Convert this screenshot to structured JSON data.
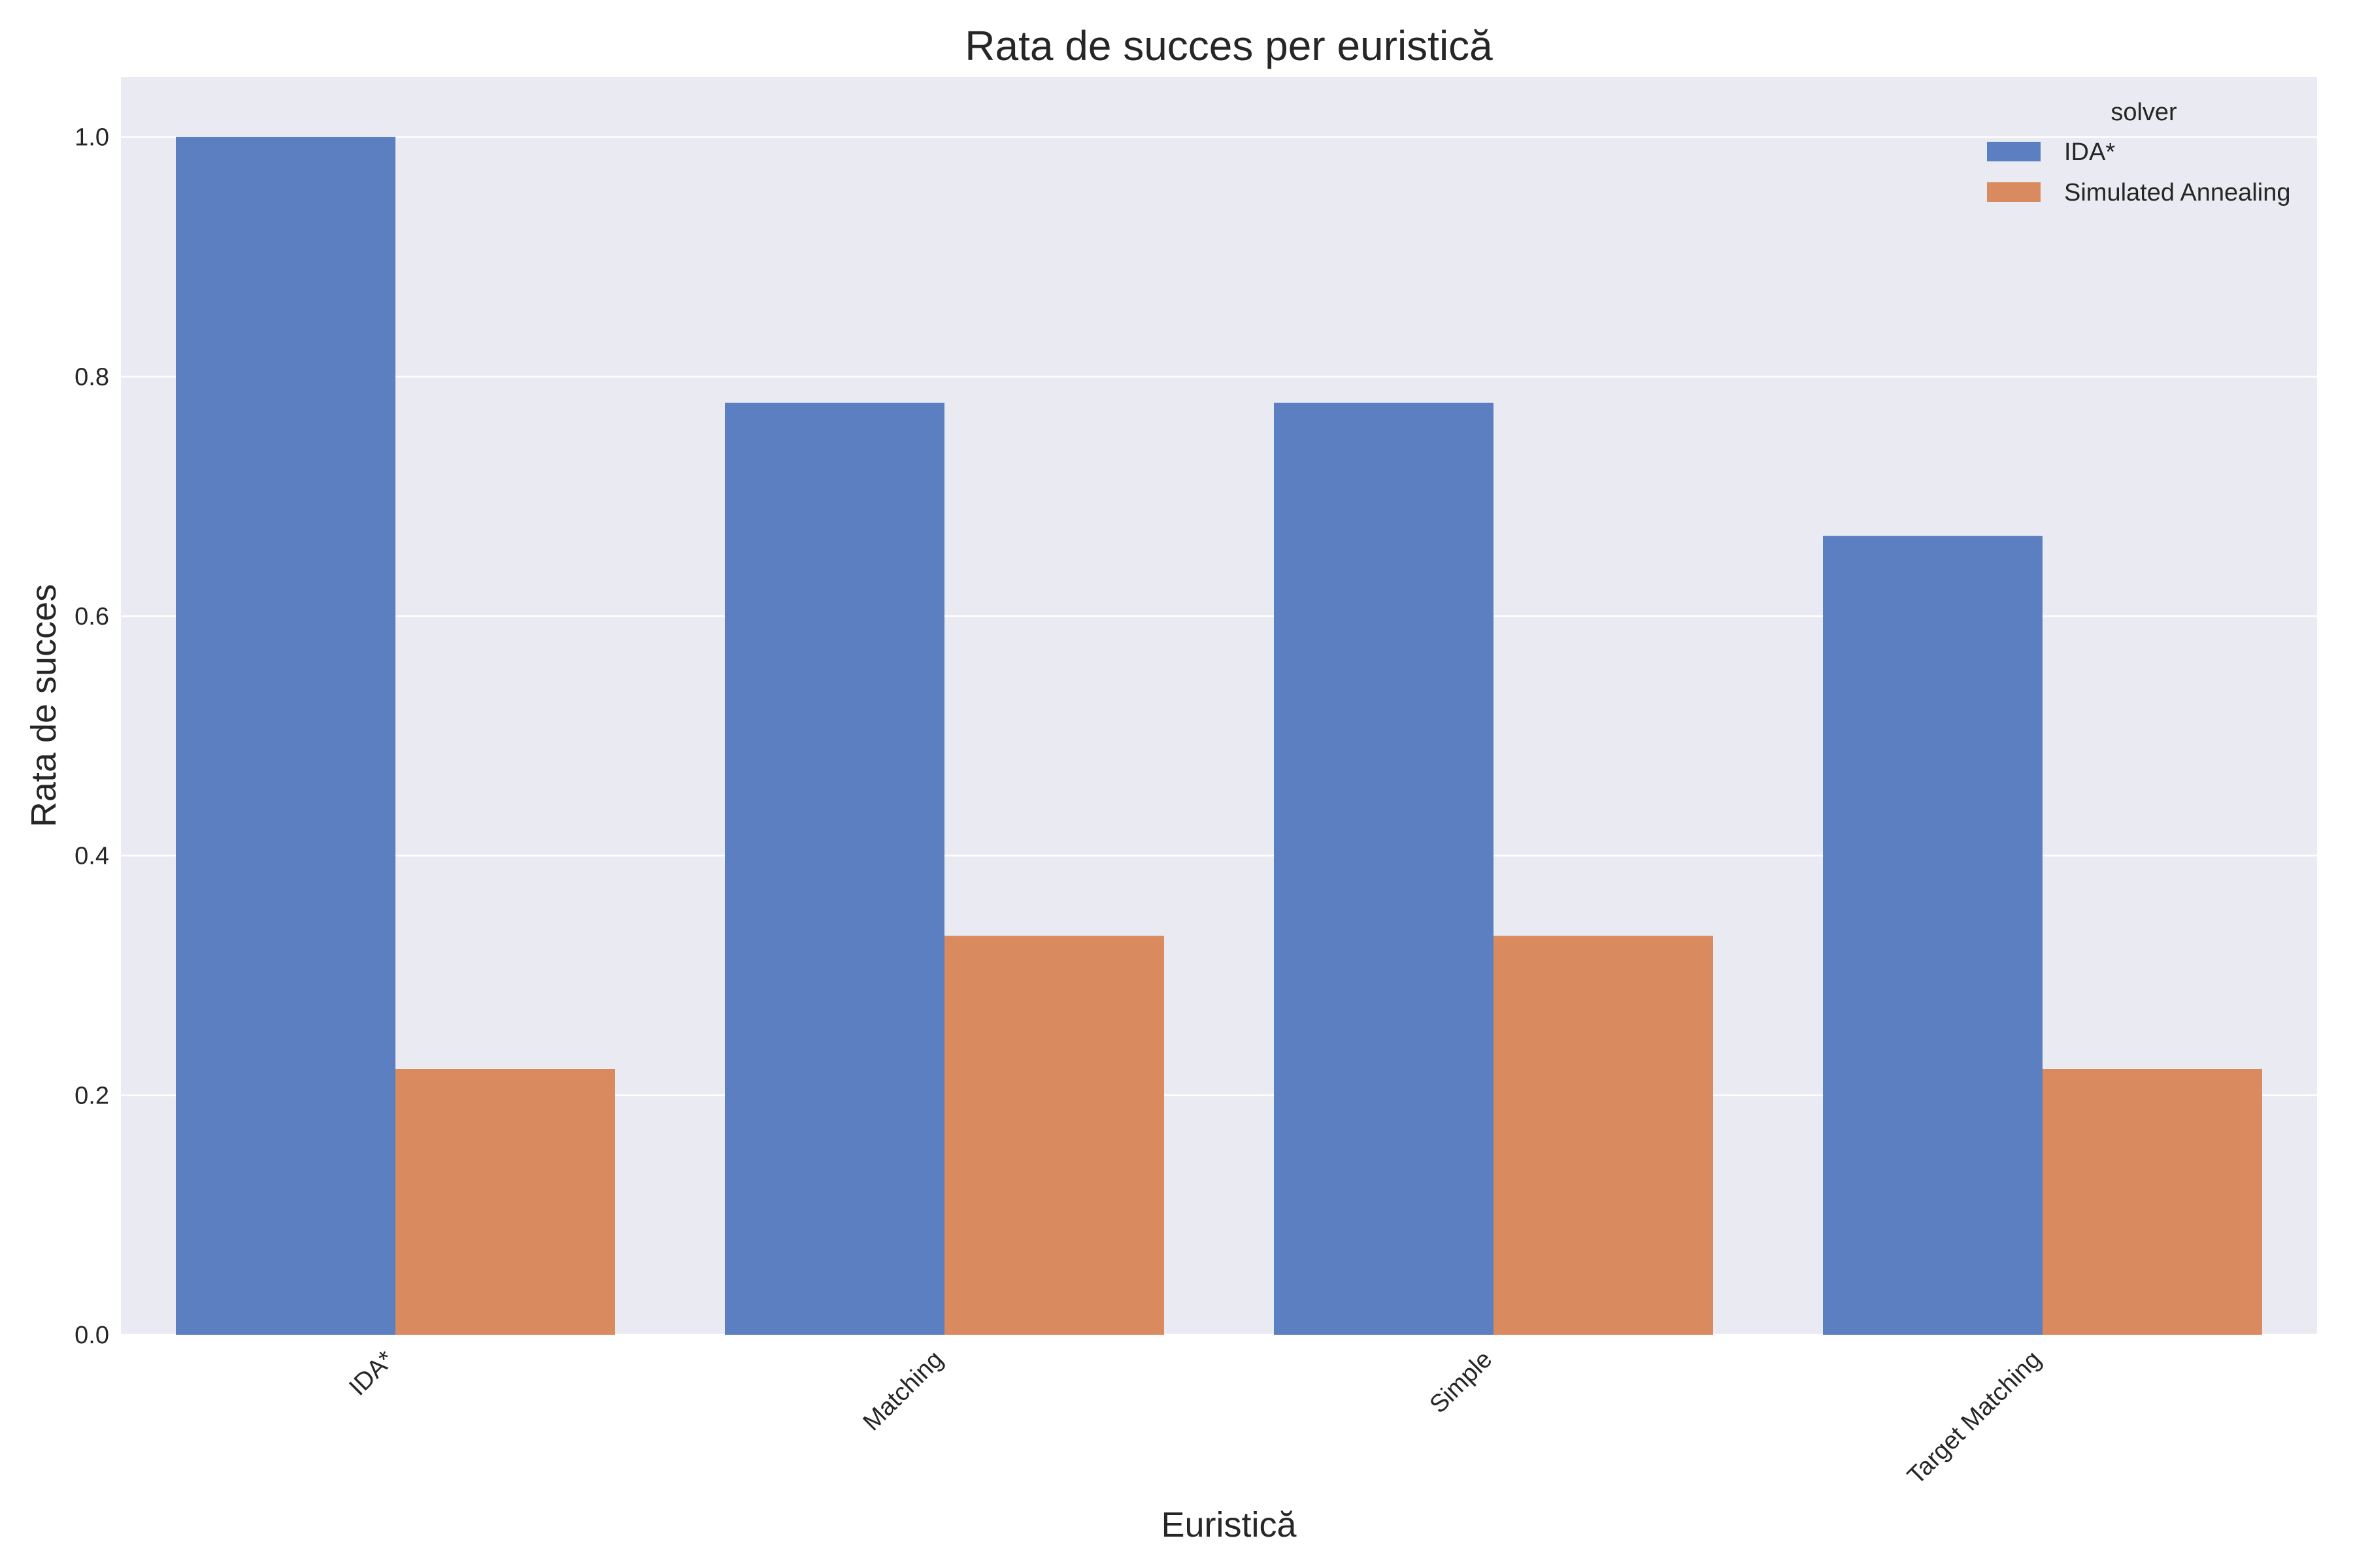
{
  "chart_data": {
    "type": "bar",
    "title": "Rata de succes per euristică",
    "xlabel": "Euristică",
    "ylabel": "Rata de succes",
    "categories": [
      "IDA*",
      "Matching",
      "Simple",
      "Target Matching"
    ],
    "series": [
      {
        "name": "IDA*",
        "color": "#5b7fc0",
        "values": [
          1.0,
          0.778,
          0.778,
          0.667
        ]
      },
      {
        "name": "Simulated Annealing",
        "color": "#d98a5e",
        "values": [
          0.222,
          0.333,
          0.333,
          0.222
        ]
      }
    ],
    "ylim": [
      0,
      1.05
    ],
    "yticks": [
      "0.0",
      "0.2",
      "0.4",
      "0.6",
      "0.8",
      "1.0"
    ],
    "grid": true,
    "legend": {
      "title": "solver",
      "placement": "top-right"
    },
    "background_color": "#eaeaf2"
  }
}
